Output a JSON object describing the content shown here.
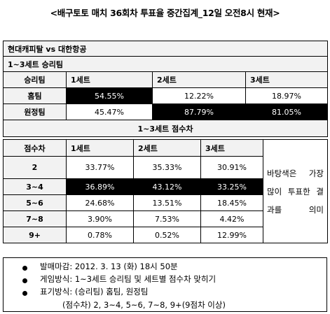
{
  "title": "<배구토토 매치 36회차 투표율 중간집계_12일 오전8시 현재>",
  "match": "현대캐피탈 vs 대한항공",
  "winner_section": {
    "title": "1~3세트 승리팀",
    "header": [
      "승리팀",
      "1세트",
      "2세트",
      "3세트"
    ],
    "rows": [
      {
        "label": "홈팀",
        "values": [
          "54.55%",
          "12.22%",
          "18.97%"
        ]
      },
      {
        "label": "원정팀",
        "values": [
          "45.47%",
          "87.79%",
          "81.05%"
        ]
      }
    ]
  },
  "score_section": {
    "title": "1~3세트 점수차",
    "header": [
      "점수차",
      "1세트",
      "2세트",
      "3세트"
    ],
    "rows": [
      {
        "label": "2",
        "values": [
          "33.77%",
          "35.33%",
          "30.91%"
        ]
      },
      {
        "label": "3~4",
        "values": [
          "36.89%",
          "43.12%",
          "33.25%"
        ]
      },
      {
        "label": "5~6",
        "values": [
          "24.68%",
          "13.51%",
          "18.45%"
        ]
      },
      {
        "label": "7~8",
        "values": [
          "3.90%",
          "7.53%",
          "4.42%"
        ]
      },
      {
        "label": "9+",
        "values": [
          "0.78%",
          "0.52%",
          "12.99%"
        ]
      }
    ],
    "note": "바탕색은 가장 많이 투표한 결과를 의미"
  },
  "notes": [
    "발매마감: 2012. 3. 13 (화) 18시 50분",
    "게임방식: 1~3세트 승리팀 및 세트별 점수차 맞히기",
    "표기방식: (승리팀) 홈팀, 원정팀",
    "(점수차) 2, 3~4, 5~6, 7~8, 9+(9점차 이상)"
  ]
}
